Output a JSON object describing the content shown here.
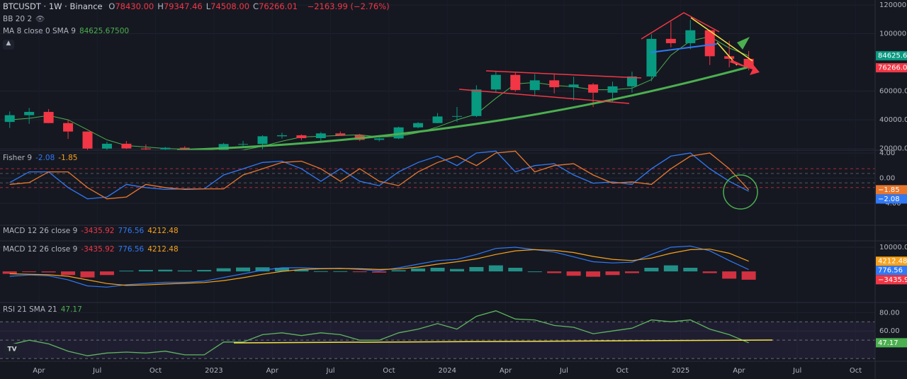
{
  "header": {
    "symbol": "BTCUSDT · 1W · Binance",
    "ohlc": [
      {
        "k": "O",
        "v": "78430.00"
      },
      {
        "k": "H",
        "v": "79347.46"
      },
      {
        "k": "L",
        "v": "74508.00"
      },
      {
        "k": "C",
        "v": "76266.01"
      }
    ],
    "change": "−2163.99 (−2.76%)"
  },
  "collapsed_pane": {
    "title": "MACD 12 26 close 9"
  },
  "chart_data": [
    {
      "type": "candlestick",
      "indicators": [
        "BB 20 2",
        "MA 8 close 0 SMA 9"
      ],
      "ma_label": "84625.67500",
      "x": [
        "2022-02",
        "2022-03",
        "2022-04",
        "2022-05",
        "2022-06",
        "2022-07",
        "2022-08",
        "2022-09",
        "2022-10",
        "2022-11",
        "2022-12",
        "2023-01",
        "2023-02",
        "2023-03",
        "2023-04",
        "2023-05",
        "2023-06",
        "2023-07",
        "2023-08",
        "2023-09",
        "2023-10",
        "2023-11",
        "2023-12",
        "2024-01",
        "2024-02",
        "2024-03",
        "2024-04",
        "2024-05",
        "2024-06",
        "2024-07",
        "2024-08",
        "2024-09",
        "2024-10",
        "2024-11",
        "2024-12",
        "2025-01",
        "2025-02",
        "2025-03",
        "2025-04"
      ],
      "open": [
        38500,
        43200,
        45500,
        37700,
        31800,
        19900,
        23300,
        20000,
        19400,
        20500,
        17200,
        16500,
        23100,
        23100,
        28500,
        29200,
        27200,
        30500,
        29200,
        26000,
        27000,
        34700,
        37700,
        42300,
        42600,
        61100,
        71300,
        60700,
        67500,
        62700,
        64600,
        58900,
        63300,
        70200,
        96400,
        93400,
        102400,
        84300,
        82500
      ],
      "high": [
        45800,
        48200,
        47400,
        40000,
        31900,
        24700,
        25200,
        22800,
        21000,
        21500,
        18400,
        23900,
        25300,
        29200,
        31000,
        29800,
        31400,
        31800,
        30100,
        27500,
        35200,
        38400,
        44700,
        48900,
        64000,
        73800,
        72800,
        71900,
        72000,
        70000,
        65600,
        66500,
        73600,
        99600,
        108300,
        109600,
        102700,
        95000,
        88000
      ],
      "low": [
        34300,
        37200,
        37700,
        26700,
        17600,
        18800,
        19600,
        18100,
        18200,
        15500,
        16300,
        16500,
        21400,
        19500,
        26900,
        25800,
        24800,
        28900,
        25100,
        24900,
        26500,
        34100,
        37600,
        38500,
        41900,
        59000,
        59600,
        56500,
        58400,
        53500,
        49000,
        52500,
        58900,
        66800,
        90500,
        89200,
        78200,
        76600,
        74500
      ],
      "close": [
        43200,
        45500,
        37700,
        31800,
        19900,
        23300,
        20000,
        19400,
        20500,
        17200,
        16500,
        23100,
        23100,
        28500,
        29200,
        27200,
        30500,
        29200,
        26000,
        27000,
        34700,
        37700,
        42300,
        42600,
        61100,
        71300,
        60700,
        67500,
        62700,
        64600,
        58900,
        63300,
        70200,
        96400,
        93400,
        102400,
        84300,
        82500,
        76266.01
      ],
      "up_color": "#089981",
      "down_color": "#f23645",
      "ma": {
        "color": "#4caf50",
        "values": [
          40000,
          41000,
          43000,
          40000,
          33000,
          26000,
          22000,
          21000,
          20000,
          19500,
          18500,
          17500,
          19000,
          21500,
          25000,
          28000,
          28500,
          29000,
          29500,
          28000,
          28500,
          31000,
          35000,
          40000,
          44000,
          55000,
          65000,
          66000,
          64000,
          63000,
          61000,
          61000,
          62000,
          68000,
          85000,
          95000,
          98000,
          90000,
          84625.675
        ]
      },
      "xlim": [
        "2022-02",
        "2025-11"
      ],
      "ylim": [
        18800,
        123500
      ],
      "yticks": [
        {
          "value": 120000,
          "label": "120000.00"
        },
        {
          "value": 100000,
          "label": "100000.00"
        },
        {
          "value": 60000,
          "label": "60000.00"
        },
        {
          "value": 40000,
          "label": "40000.00"
        },
        {
          "value": 20000,
          "label": "20000.00"
        }
      ],
      "tags": [
        {
          "value": 84625.675,
          "label": "84625.67",
          "color": "#089981"
        },
        {
          "value": 76266.01,
          "label": "76266.01",
          "color": "#f23645"
        }
      ]
    },
    {
      "type": "line",
      "title": "Fisher 9",
      "x": [
        "2022-02",
        "2022-03",
        "2022-04",
        "2022-05",
        "2022-06",
        "2022-07",
        "2022-08",
        "2022-09",
        "2022-10",
        "2022-11",
        "2022-12",
        "2023-01",
        "2023-02",
        "2023-03",
        "2023-04",
        "2023-05",
        "2023-06",
        "2023-07",
        "2023-08",
        "2023-09",
        "2023-10",
        "2023-11",
        "2023-12",
        "2024-01",
        "2024-02",
        "2024-03",
        "2024-04",
        "2024-05",
        "2024-06",
        "2024-07",
        "2024-08",
        "2024-09",
        "2024-10",
        "2024-11",
        "2024-12",
        "2025-01",
        "2025-02",
        "2025-03",
        "2025-04"
      ],
      "series": [
        {
          "color": "#3179f5",
          "values": [
            -0.7,
            1.0,
            1.0,
            -1.5,
            -3.3,
            -3.0,
            -1.0,
            -1.5,
            -1.8,
            -1.7,
            -1.7,
            0.5,
            1.5,
            2.5,
            2.7,
            1.5,
            -0.5,
            1.5,
            -0.5,
            -1.2,
            1.0,
            2.5,
            3.5,
            2.0,
            4.0,
            4.3,
            1.0,
            2.0,
            2.3,
            0.5,
            -0.8,
            -0.6,
            -1.0,
            1.5,
            3.5,
            4.0,
            1.5,
            -0.5,
            -2.08
          ]
        },
        {
          "color": "#e8762d",
          "values": [
            -1.0,
            -0.7,
            1.0,
            1.0,
            -1.5,
            -3.3,
            -3.0,
            -1.0,
            -1.5,
            -1.8,
            -1.7,
            -1.7,
            0.5,
            1.5,
            2.5,
            2.7,
            1.5,
            -0.5,
            1.5,
            -0.5,
            -1.2,
            1.0,
            2.5,
            3.5,
            2.0,
            4.0,
            4.3,
            1.0,
            2.0,
            2.3,
            0.5,
            -0.8,
            -0.6,
            -1.0,
            1.5,
            3.5,
            4.0,
            1.5,
            -1.85
          ]
        }
      ],
      "levels": [
        {
          "value": 1.5,
          "color": "#b2283b"
        },
        {
          "value": 0.75,
          "color": "#555a66"
        },
        {
          "value": -0.75,
          "color": "#555a66"
        },
        {
          "value": -1.5,
          "color": "#b2283b"
        }
      ],
      "xlim": [
        "2022-02",
        "2025-11"
      ],
      "ylim": [
        -7.5,
        4.45
      ],
      "yticks": [
        {
          "value": 4,
          "label": "4.00"
        },
        {
          "value": 0,
          "label": "0.00"
        },
        {
          "value": -4,
          "label": "−4.00"
        }
      ],
      "tags": [
        {
          "value": -1.85,
          "label": "−1.85",
          "color": "#e8762d"
        },
        {
          "value": -2.08,
          "label": "−2.08",
          "color": "#3179f5"
        }
      ]
    },
    {
      "type": "macd",
      "title": "MACD 12 26 close 9",
      "x": [
        "2022-02",
        "2022-03",
        "2022-04",
        "2022-05",
        "2022-06",
        "2022-07",
        "2022-08",
        "2022-09",
        "2022-10",
        "2022-11",
        "2022-12",
        "2023-01",
        "2023-02",
        "2023-03",
        "2023-04",
        "2023-05",
        "2023-06",
        "2023-07",
        "2023-08",
        "2023-09",
        "2023-10",
        "2023-11",
        "2023-12",
        "2024-01",
        "2024-02",
        "2024-03",
        "2024-04",
        "2024-05",
        "2024-06",
        "2024-07",
        "2024-08",
        "2024-09",
        "2024-10",
        "2024-11",
        "2024-12",
        "2025-01",
        "2025-02",
        "2025-03",
        "2025-04"
      ],
      "histogram": {
        "up_color": "#26a69a",
        "down_color": "#f23645",
        "values": [
          -1000,
          -300,
          -400,
          -1500,
          -2500,
          -1500,
          300,
          600,
          700,
          400,
          600,
          1300,
          1600,
          1700,
          1500,
          700,
          100,
          100,
          -300,
          -500,
          500,
          1200,
          1500,
          1000,
          1800,
          2500,
          1500,
          0,
          -700,
          -1800,
          -2200,
          -1500,
          -700,
          1500,
          2500,
          1500,
          -700,
          -3000,
          -3435.92
        ]
      },
      "series": [
        {
          "color": "#3179f5",
          "values": [
            -2000,
            -1500,
            -1800,
            -3500,
            -6000,
            -6500,
            -5500,
            -5000,
            -4500,
            -4500,
            -4000,
            -2500,
            -1000,
            500,
            1500,
            1500,
            1200,
            1300,
            800,
            300,
            1500,
            3000,
            4500,
            5000,
            7000,
            9500,
            10000,
            9000,
            8000,
            6000,
            4000,
            3500,
            3800,
            7000,
            10000,
            10500,
            8500,
            4500,
            776.56
          ]
        },
        {
          "color": "#f7a21b",
          "values": [
            -1000,
            -1200,
            -1400,
            -2000,
            -3500,
            -5000,
            -5800,
            -5600,
            -5200,
            -4900,
            -4600,
            -3800,
            -2600,
            -1200,
            0,
            800,
            1100,
            1200,
            1100,
            800,
            1000,
            1800,
            3000,
            4000,
            5200,
            7000,
            8500,
            9000,
            8700,
            7800,
            6200,
            5000,
            4500,
            5500,
            7500,
            9000,
            9200,
            7500,
            4212.48
          ]
        }
      ],
      "xlim": [
        "2022-02",
        "2025-11"
      ],
      "ylim": [
        -12850,
        12630
      ],
      "yticks": [
        {
          "value": 10000,
          "label": "10000.00"
        }
      ],
      "tags": [
        {
          "value": 4212.48,
          "label": "4212.48",
          "color": "#f7a21b"
        },
        {
          "value": 776.56,
          "label": "776.56",
          "color": "#3179f5"
        },
        {
          "value": -3435.92,
          "label": "−3435.92",
          "color": "#f23645"
        }
      ]
    },
    {
      "type": "line",
      "title": "RSI 21 SMA 21",
      "x": [
        "2022-02",
        "2022-03",
        "2022-04",
        "2022-05",
        "2022-06",
        "2022-07",
        "2022-08",
        "2022-09",
        "2022-10",
        "2022-11",
        "2022-12",
        "2023-01",
        "2023-02",
        "2023-03",
        "2023-04",
        "2023-05",
        "2023-06",
        "2023-07",
        "2023-08",
        "2023-09",
        "2023-10",
        "2023-11",
        "2023-12",
        "2024-01",
        "2024-02",
        "2024-03",
        "2024-04",
        "2024-05",
        "2024-06",
        "2024-07",
        "2024-08",
        "2024-09",
        "2024-10",
        "2024-11",
        "2024-12",
        "2025-01",
        "2025-02",
        "2025-03",
        "2025-04"
      ],
      "series": [
        {
          "color": "#5fb55f",
          "values": [
            45,
            50,
            46,
            38,
            33,
            36,
            37,
            36,
            38,
            34,
            34,
            48,
            48,
            56,
            58,
            55,
            58,
            56,
            50,
            50,
            58,
            62,
            68,
            62,
            76,
            82,
            73,
            72,
            66,
            64,
            57,
            60,
            63,
            72,
            70,
            72,
            62,
            56,
            47.17
          ]
        }
      ],
      "band": [
        30,
        70
      ],
      "band_color": "#7e57c2",
      "mid": 50,
      "xlim": [
        "2022-02",
        "2025-11"
      ],
      "ylim": [
        27,
        91
      ],
      "yticks": [
        {
          "value": 80,
          "label": "80.00"
        },
        {
          "value": 60,
          "label": "60.00"
        }
      ],
      "tags": [
        {
          "value": 47.17,
          "label": "47.17",
          "color": "#4caf50"
        }
      ],
      "xticks": [
        {
          "value": "2022-04",
          "label": "Apr"
        },
        {
          "value": "2022-07",
          "label": "Jul"
        },
        {
          "value": "2022-10",
          "label": "Oct"
        },
        {
          "value": "2023-01",
          "label": "2023"
        },
        {
          "value": "2023-04",
          "label": "Apr"
        },
        {
          "value": "2023-07",
          "label": "Jul"
        },
        {
          "value": "2023-10",
          "label": "Oct"
        },
        {
          "value": "2024-01",
          "label": "2024"
        },
        {
          "value": "2024-04",
          "label": "Apr"
        },
        {
          "value": "2024-07",
          "label": "Jul"
        },
        {
          "value": "2024-10",
          "label": "Oct"
        },
        {
          "value": "2025-01",
          "label": "2025"
        },
        {
          "value": "2025-04",
          "label": "Apr"
        },
        {
          "value": "2025-07",
          "label": "Jul"
        },
        {
          "value": "2025-10",
          "label": "Oct"
        }
      ]
    }
  ]
}
